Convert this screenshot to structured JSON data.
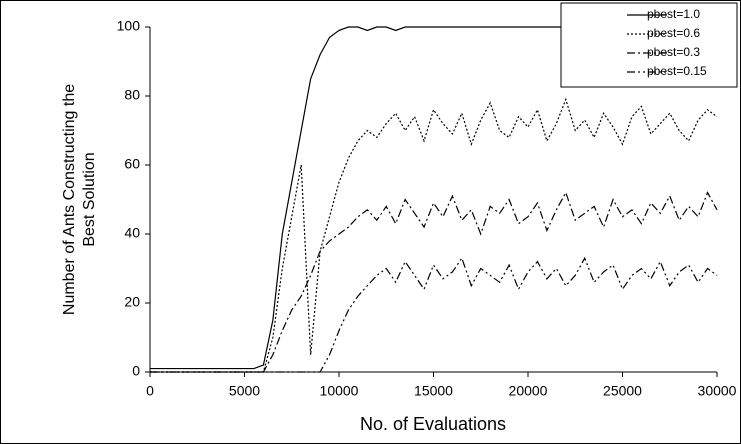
{
  "chart_data": {
    "type": "line",
    "xlabel": "No. of Evaluations",
    "ylabel": "Number of Ants Constructing the Best Solution",
    "x": [
      0,
      500,
      1000,
      1500,
      2000,
      2500,
      3000,
      3500,
      4000,
      4500,
      5000,
      5500,
      6000,
      6500,
      7000,
      7500,
      8000,
      8500,
      9000,
      9500,
      10000,
      10500,
      11000,
      11500,
      12000,
      12500,
      13000,
      13500,
      14000,
      14500,
      15000,
      15500,
      16000,
      16500,
      17000,
      17500,
      18000,
      18500,
      19000,
      19500,
      20000,
      20500,
      21000,
      21500,
      22000,
      22500,
      23000,
      23500,
      24000,
      24500,
      25000,
      25500,
      26000,
      26500,
      27000,
      27500,
      28000,
      28500,
      29000,
      29500,
      30000
    ],
    "series": [
      {
        "name": "pbest=1.0",
        "color": "#000000",
        "linestyle": "solid",
        "values": [
          1,
          1,
          1,
          1,
          1,
          1,
          1,
          1,
          1,
          1,
          1,
          1,
          2,
          15,
          40,
          55,
          70,
          85,
          92,
          97,
          99,
          100,
          100,
          99,
          100,
          100,
          99,
          100,
          100,
          100,
          100,
          100,
          100,
          100,
          100,
          100,
          100,
          100,
          100,
          100,
          100,
          100,
          100,
          100,
          100,
          100,
          100,
          100,
          100,
          100,
          100,
          100,
          100,
          100,
          100,
          100,
          100,
          100,
          100,
          100,
          100
        ]
      },
      {
        "name": "pbest=0.6",
        "color": "#000000",
        "linestyle": "dotted",
        "values": [
          0,
          0,
          0,
          0,
          0,
          0,
          0,
          0,
          0,
          0,
          0,
          0,
          0,
          10,
          30,
          45,
          60,
          5,
          35,
          45,
          55,
          62,
          67,
          70,
          68,
          72,
          75,
          70,
          74,
          67,
          76,
          72,
          69,
          75,
          66,
          73,
          78,
          70,
          68,
          74,
          71,
          76,
          67,
          72,
          79,
          70,
          73,
          68,
          75,
          71,
          66,
          74,
          77,
          69,
          72,
          75,
          70,
          67,
          73,
          76,
          74
        ]
      },
      {
        "name": "pbest=0.3",
        "color": "#000000",
        "linestyle": "dashdot",
        "values": [
          0,
          0,
          0,
          0,
          0,
          0,
          0,
          0,
          0,
          0,
          0,
          0,
          0,
          5,
          12,
          18,
          22,
          28,
          35,
          38,
          40,
          42,
          45,
          47,
          44,
          48,
          43,
          50,
          46,
          42,
          49,
          45,
          51,
          44,
          47,
          40,
          48,
          46,
          50,
          43,
          45,
          49,
          41,
          47,
          52,
          44,
          46,
          48,
          42,
          50,
          45,
          47,
          43,
          49,
          46,
          51,
          44,
          48,
          45,
          52,
          47
        ]
      },
      {
        "name": "pbest=0.15",
        "color": "#000000",
        "linestyle": "dashdotdot",
        "values": [
          0,
          0,
          0,
          0,
          0,
          0,
          0,
          0,
          0,
          0,
          0,
          0,
          0,
          0,
          0,
          0,
          0,
          0,
          0,
          5,
          12,
          18,
          22,
          25,
          28,
          30,
          26,
          32,
          28,
          24,
          31,
          27,
          29,
          33,
          25,
          30,
          28,
          26,
          31,
          24,
          29,
          32,
          27,
          30,
          25,
          28,
          33,
          26,
          29,
          31,
          24,
          28,
          30,
          27,
          32,
          25,
          29,
          31,
          26,
          30,
          28
        ]
      }
    ],
    "xlim": [
      0,
      30000
    ],
    "xticks": [
      0,
      5000,
      10000,
      15000,
      20000,
      25000,
      30000
    ],
    "ylim": [
      0,
      100
    ],
    "yticks": [
      0,
      20,
      40,
      60,
      80,
      100
    ],
    "grid": false,
    "legend": "upper right"
  }
}
